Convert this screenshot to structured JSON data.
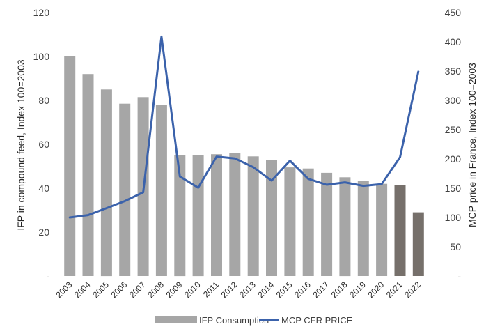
{
  "chart_data": {
    "type": "bar",
    "categories": [
      "2003",
      "2004",
      "2005",
      "2006",
      "2007",
      "2008",
      "2009",
      "2010",
      "2011",
      "2012",
      "2013",
      "2014",
      "2015",
      "2016",
      "2017",
      "2018",
      "2019",
      "2020",
      "2021",
      "2022"
    ],
    "series": [
      {
        "name": "IFP Consumption",
        "type": "bar",
        "axis": "left",
        "values": [
          100,
          92,
          85,
          78.5,
          81.5,
          78,
          55,
          55,
          55.5,
          56,
          54.5,
          53,
          49.5,
          49,
          47,
          45,
          43.5,
          42,
          41.5,
          29
        ],
        "colors": [
          "#a6a6a6",
          "#a6a6a6",
          "#a6a6a6",
          "#a6a6a6",
          "#a6a6a6",
          "#a6a6a6",
          "#a6a6a6",
          "#a6a6a6",
          "#a6a6a6",
          "#a6a6a6",
          "#a6a6a6",
          "#a6a6a6",
          "#a6a6a6",
          "#a6a6a6",
          "#a6a6a6",
          "#a6a6a6",
          "#a6a6a6",
          "#a6a6a6",
          "#76706b",
          "#76706b"
        ]
      },
      {
        "name": "MCP CFR PRICE",
        "type": "line",
        "axis": "right",
        "color": "#3b62ab",
        "values": [
          100,
          104,
          116,
          128,
          143,
          409,
          170,
          151,
          204,
          201,
          186,
          163,
          197,
          166,
          156,
          160,
          154,
          157,
          203,
          349
        ]
      }
    ],
    "y_left": {
      "label": "IFP in compound feed, Index 100=2003",
      "range": [
        0,
        120
      ],
      "ticks": [
        {
          "value": 0,
          "label": "-"
        },
        {
          "value": 20,
          "label": "20"
        },
        {
          "value": 40,
          "label": "40"
        },
        {
          "value": 60,
          "label": "60"
        },
        {
          "value": 80,
          "label": "80"
        },
        {
          "value": 100,
          "label": "100"
        },
        {
          "value": 120,
          "label": "120"
        }
      ]
    },
    "y_right": {
      "label": "MCP price in France, Index 100=2003",
      "range": [
        0,
        450
      ],
      "ticks": [
        {
          "value": 0,
          "label": "-"
        },
        {
          "value": 50,
          "label": "50"
        },
        {
          "value": 100,
          "label": "100"
        },
        {
          "value": 150,
          "label": "150"
        },
        {
          "value": 200,
          "label": "200"
        },
        {
          "value": 250,
          "label": "250"
        },
        {
          "value": 300,
          "label": "300"
        },
        {
          "value": 350,
          "label": "350"
        },
        {
          "value": 400,
          "label": "400"
        },
        {
          "value": 450,
          "label": "450"
        }
      ]
    },
    "grid": false,
    "legend": {
      "position": "bottom",
      "items": [
        {
          "label": "IFP Consumption",
          "type": "bar",
          "color": "#a6a6a6"
        },
        {
          "label": "MCP CFR PRICE",
          "type": "line",
          "color": "#3b62ab"
        }
      ]
    }
  }
}
